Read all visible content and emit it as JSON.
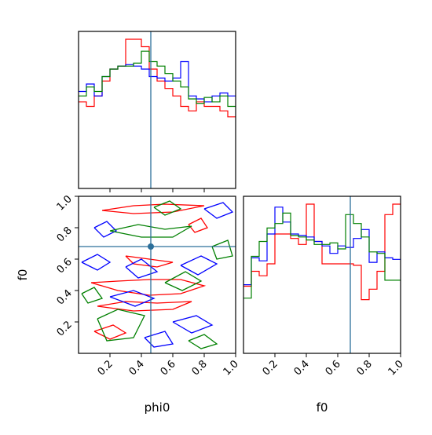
{
  "chart_data": [
    {
      "type": "histogram",
      "panel": "phi0-marginal",
      "xlim": [
        0,
        1
      ],
      "bins": 20,
      "truth_line": 0.46,
      "truth_color": "#2c6f9a",
      "series": [
        {
          "color": "#ff0000",
          "values": [
            0.58,
            0.55,
            0.62,
            0.72,
            0.8,
            0.82,
            1.0,
            1.0,
            0.95,
            0.8,
            0.72,
            0.67,
            0.62,
            0.55,
            0.52,
            0.58,
            0.55,
            0.55,
            0.52,
            0.48
          ]
        },
        {
          "color": "#0000ff",
          "values": [
            0.65,
            0.7,
            0.62,
            0.75,
            0.8,
            0.82,
            0.83,
            0.82,
            0.8,
            0.75,
            0.74,
            0.72,
            0.74,
            0.85,
            0.62,
            0.6,
            0.58,
            0.62,
            0.64,
            0.62
          ]
        },
        {
          "color": "#008000",
          "values": [
            0.62,
            0.68,
            0.65,
            0.75,
            0.8,
            0.82,
            0.82,
            0.84,
            0.92,
            0.85,
            0.82,
            0.77,
            0.72,
            0.68,
            0.6,
            0.57,
            0.61,
            0.58,
            0.62,
            0.55
          ]
        }
      ],
      "ticks": [
        0.2,
        0.4,
        0.6,
        0.8
      ]
    },
    {
      "type": "histogram",
      "panel": "f0-marginal",
      "xlim": [
        0,
        1
      ],
      "bins": 20,
      "truth_line": 0.68,
      "truth_color": "#2c6f9a",
      "series": [
        {
          "color": "#ff0000",
          "values": [
            0.45,
            0.55,
            0.52,
            0.6,
            0.8,
            0.8,
            0.77,
            0.73,
            1.0,
            0.75,
            0.6,
            0.6,
            0.6,
            0.6,
            0.59,
            0.36,
            0.43,
            0.55,
            0.93,
            1.0
          ]
        },
        {
          "color": "#0000ff",
          "values": [
            0.46,
            0.64,
            0.62,
            0.8,
            0.98,
            0.88,
            0.8,
            0.79,
            0.78,
            0.75,
            0.72,
            0.67,
            0.72,
            0.71,
            0.77,
            0.83,
            0.61,
            0.68,
            0.64,
            0.63
          ]
        },
        {
          "color": "#008000",
          "values": [
            0.37,
            0.65,
            0.75,
            0.84,
            0.87,
            0.94,
            0.79,
            0.78,
            0.76,
            0.73,
            0.73,
            0.74,
            0.7,
            0.93,
            0.87,
            0.78,
            0.68,
            0.67,
            0.49,
            0.49
          ]
        }
      ],
      "ticks": [
        0.2,
        0.4,
        0.6,
        0.8,
        1.0
      ],
      "tick_labels": [
        "0.2",
        "0.4",
        "0.6",
        "0.8",
        "1.0"
      ],
      "xlabel": "f0"
    },
    {
      "type": "contour",
      "panel": "phi0-vs-f0",
      "xlim": [
        0,
        1
      ],
      "ylim": [
        0,
        1
      ],
      "truth_point": [
        0.46,
        0.68
      ],
      "truth_color": "#2c6f9a",
      "x_ticks": [
        0.2,
        0.4,
        0.6,
        0.8,
        1.0
      ],
      "x_tick_labels": [
        "0.2",
        "0.4",
        "0.6",
        "0.8",
        "1.0"
      ],
      "y_ticks": [
        0.2,
        0.4,
        0.6,
        0.8,
        1.0
      ],
      "y_tick_labels": [
        "0.2",
        "0.4",
        "0.6",
        "0.8",
        "1.0"
      ],
      "xlabel": "phi0",
      "ylabel": "f0",
      "contours": [
        {
          "color": "#ff0000",
          "points": [
            [
              0.08,
              0.45
            ],
            [
              0.25,
              0.4
            ],
            [
              0.45,
              0.37
            ],
            [
              0.65,
              0.38
            ],
            [
              0.8,
              0.43
            ],
            [
              0.65,
              0.47
            ],
            [
              0.45,
              0.47
            ],
            [
              0.25,
              0.46
            ],
            [
              0.08,
              0.45
            ]
          ]
        },
        {
          "color": "#ff0000",
          "points": [
            [
              0.12,
              0.3
            ],
            [
              0.3,
              0.33
            ],
            [
              0.5,
              0.32
            ],
            [
              0.72,
              0.33
            ],
            [
              0.6,
              0.28
            ],
            [
              0.35,
              0.27
            ],
            [
              0.12,
              0.3
            ]
          ]
        },
        {
          "color": "#ff0000",
          "points": [
            [
              0.15,
              0.91
            ],
            [
              0.35,
              0.94
            ],
            [
              0.55,
              0.95
            ],
            [
              0.8,
              0.94
            ],
            [
              0.6,
              0.9
            ],
            [
              0.35,
              0.89
            ],
            [
              0.15,
              0.91
            ]
          ]
        },
        {
          "color": "#ff0000",
          "points": [
            [
              0.3,
              0.62
            ],
            [
              0.45,
              0.6
            ],
            [
              0.6,
              0.58
            ],
            [
              0.5,
              0.55
            ],
            [
              0.35,
              0.57
            ],
            [
              0.3,
              0.62
            ]
          ]
        },
        {
          "color": "#ff0000",
          "points": [
            [
              0.1,
              0.14
            ],
            [
              0.22,
              0.18
            ],
            [
              0.3,
              0.13
            ],
            [
              0.2,
              0.09
            ],
            [
              0.1,
              0.14
            ]
          ]
        },
        {
          "color": "#ff0000",
          "points": [
            [
              0.7,
              0.82
            ],
            [
              0.78,
              0.86
            ],
            [
              0.82,
              0.8
            ],
            [
              0.74,
              0.77
            ],
            [
              0.7,
              0.82
            ]
          ]
        },
        {
          "color": "#0000ff",
          "points": [
            [
              0.02,
              0.58
            ],
            [
              0.12,
              0.63
            ],
            [
              0.2,
              0.58
            ],
            [
              0.12,
              0.53
            ],
            [
              0.02,
              0.58
            ]
          ]
        },
        {
          "color": "#0000ff",
          "points": [
            [
              0.2,
              0.36
            ],
            [
              0.35,
              0.4
            ],
            [
              0.48,
              0.35
            ],
            [
              0.36,
              0.3
            ],
            [
              0.2,
              0.36
            ]
          ]
        },
        {
          "color": "#0000ff",
          "points": [
            [
              0.3,
              0.55
            ],
            [
              0.4,
              0.6
            ],
            [
              0.5,
              0.52
            ],
            [
              0.38,
              0.48
            ],
            [
              0.3,
              0.55
            ]
          ]
        },
        {
          "color": "#0000ff",
          "points": [
            [
              0.6,
              0.2
            ],
            [
              0.75,
              0.24
            ],
            [
              0.85,
              0.18
            ],
            [
              0.72,
              0.13
            ],
            [
              0.6,
              0.2
            ]
          ]
        },
        {
          "color": "#0000ff",
          "points": [
            [
              0.65,
              0.56
            ],
            [
              0.78,
              0.62
            ],
            [
              0.88,
              0.57
            ],
            [
              0.76,
              0.5
            ],
            [
              0.65,
              0.56
            ]
          ]
        },
        {
          "color": "#0000ff",
          "points": [
            [
              0.8,
              0.92
            ],
            [
              0.92,
              0.96
            ],
            [
              0.98,
              0.9
            ],
            [
              0.88,
              0.86
            ],
            [
              0.8,
              0.92
            ]
          ]
        },
        {
          "color": "#0000ff",
          "points": [
            [
              0.1,
              0.8
            ],
            [
              0.18,
              0.84
            ],
            [
              0.24,
              0.78
            ],
            [
              0.16,
              0.74
            ],
            [
              0.1,
              0.8
            ]
          ]
        },
        {
          "color": "#0000ff",
          "points": [
            [
              0.42,
              0.1
            ],
            [
              0.55,
              0.14
            ],
            [
              0.6,
              0.06
            ],
            [
              0.48,
              0.04
            ],
            [
              0.42,
              0.1
            ]
          ]
        },
        {
          "color": "#008000",
          "points": [
            [
              0.2,
              0.78
            ],
            [
              0.38,
              0.82
            ],
            [
              0.55,
              0.79
            ],
            [
              0.72,
              0.81
            ],
            [
              0.6,
              0.74
            ],
            [
              0.4,
              0.74
            ],
            [
              0.2,
              0.78
            ]
          ]
        },
        {
          "color": "#008000",
          "points": [
            [
              0.12,
              0.22
            ],
            [
              0.25,
              0.28
            ],
            [
              0.42,
              0.24
            ],
            [
              0.35,
              0.1
            ],
            [
              0.18,
              0.08
            ],
            [
              0.12,
              0.22
            ]
          ]
        },
        {
          "color": "#008000",
          "points": [
            [
              0.55,
              0.45
            ],
            [
              0.68,
              0.52
            ],
            [
              0.78,
              0.46
            ],
            [
              0.66,
              0.4
            ],
            [
              0.55,
              0.45
            ]
          ]
        },
        {
          "color": "#008000",
          "points": [
            [
              0.85,
              0.68
            ],
            [
              0.95,
              0.72
            ],
            [
              0.98,
              0.62
            ],
            [
              0.88,
              0.6
            ],
            [
              0.85,
              0.68
            ]
          ]
        },
        {
          "color": "#008000",
          "points": [
            [
              0.02,
              0.38
            ],
            [
              0.1,
              0.42
            ],
            [
              0.15,
              0.35
            ],
            [
              0.06,
              0.32
            ],
            [
              0.02,
              0.38
            ]
          ]
        },
        {
          "color": "#008000",
          "points": [
            [
              0.48,
              0.93
            ],
            [
              0.58,
              0.97
            ],
            [
              0.65,
              0.92
            ],
            [
              0.55,
              0.88
            ],
            [
              0.48,
              0.93
            ]
          ]
        },
        {
          "color": "#008000",
          "points": [
            [
              0.7,
              0.08
            ],
            [
              0.8,
              0.12
            ],
            [
              0.88,
              0.06
            ],
            [
              0.78,
              0.03
            ],
            [
              0.7,
              0.08
            ]
          ]
        }
      ]
    }
  ]
}
